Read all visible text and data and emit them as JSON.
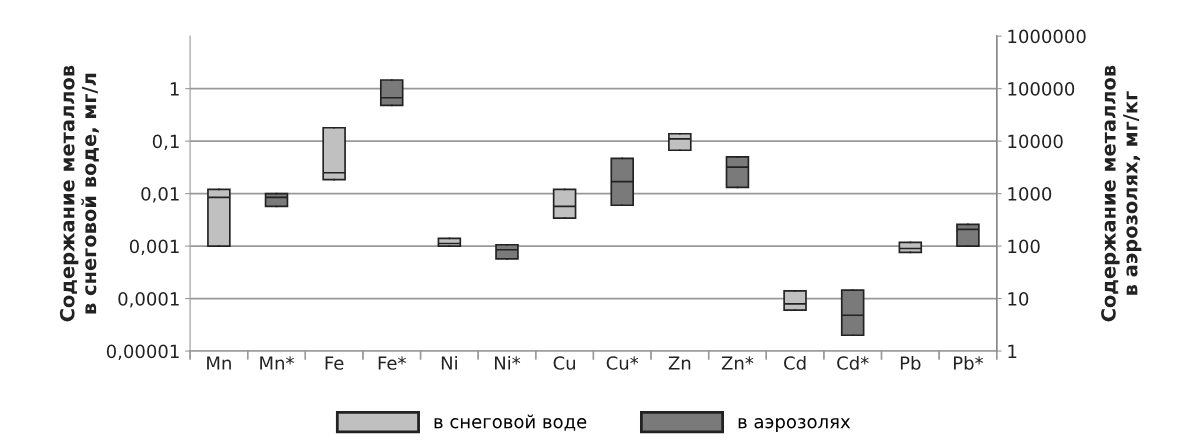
{
  "chart_data": [
    {
      "type": "box",
      "ylabel": "Содержание металлов\nв снеговой воде, мг/л",
      "categories": [
        "Mn",
        null,
        "Fe",
        null,
        "Ni",
        null,
        "Cu",
        null,
        "Zn",
        null,
        "Cd",
        null,
        "Pb",
        null
      ],
      "log": "y",
      "ylim": [
        1e-05,
        10
      ],
      "yticks": [
        {
          "value": 1e-05,
          "label": "0,00001"
        },
        {
          "value": 0.0001,
          "label": "0,0001"
        },
        {
          "value": 0.001,
          "label": "0,001"
        },
        {
          "value": 0.01,
          "label": "0,01"
        },
        {
          "value": 0.1,
          "label": "0,1"
        },
        {
          "value": 1,
          "label": "1"
        }
      ],
      "grid": "y",
      "legend": "bottom",
      "series": [
        {
          "name": "в снеговой воде",
          "color": "#c0c0c0",
          "boxes": [
            {
              "low": 0.001,
              "q1": 0.001,
              "median": 0.0085,
              "q3": 0.012,
              "high": 0.012
            },
            null,
            {
              "low": 0.0185,
              "q1": 0.0185,
              "median": 0.025,
              "q3": 0.18,
              "high": 0.18
            },
            null,
            {
              "low": 0.001,
              "q1": 0.001,
              "median": 0.00112,
              "q3": 0.0014,
              "high": 0.0014
            },
            null,
            {
              "low": 0.0034,
              "q1": 0.0034,
              "median": 0.0057,
              "q3": 0.012,
              "high": 0.012
            },
            null,
            {
              "low": 0.067,
              "q1": 0.067,
              "median": 0.11,
              "q3": 0.138,
              "high": 0.138
            },
            null,
            {
              "low": 6e-05,
              "q1": 6e-05,
              "median": 7.9e-05,
              "q3": 0.00014,
              "high": 0.00014
            },
            null,
            {
              "low": 0.00076,
              "q1": 0.00076,
              "median": 0.0009,
              "q3": 0.00118,
              "high": 0.00118
            },
            null
          ]
        }
      ]
    },
    {
      "type": "box",
      "y2label": "Содержание металлов\nв аэрозолях, мг/кг",
      "categories": [
        null,
        "Mn*",
        null,
        "Fe*",
        null,
        "Ni*",
        null,
        "Cu*",
        null,
        "Zn*",
        null,
        "Cd*",
        null,
        "Pb*"
      ],
      "log": "y2",
      "y2lim": [
        1,
        1000000
      ],
      "y2ticks": [
        1,
        10,
        100,
        1000,
        10000,
        100000,
        1000000
      ],
      "legend": "bottom",
      "series": [
        {
          "name": "в аэрозолях",
          "color": "#7a7a7a",
          "axis": "y2",
          "boxes": [
            null,
            {
              "low": 570,
              "q1": 570,
              "median": 850,
              "q3": 1000,
              "high": 1000
            },
            null,
            {
              "low": 48000,
              "q1": 48000,
              "median": 67000,
              "q3": 146000,
              "high": 146000
            },
            null,
            {
              "low": 57,
              "q1": 57,
              "median": 85,
              "q3": 106,
              "high": 106
            },
            null,
            {
              "low": 600,
              "q1": 600,
              "median": 1690,
              "q3": 4700,
              "high": 4700
            },
            null,
            {
              "low": 1310,
              "q1": 1310,
              "median": 3200,
              "q3": 5000,
              "high": 5000
            },
            null,
            {
              "low": 2.0,
              "q1": 2.0,
              "median": 4.8,
              "q3": 14.5,
              "high": 14.5
            },
            null,
            {
              "low": 100,
              "q1": 100,
              "median": 208,
              "q3": 260,
              "high": 260
            }
          ]
        }
      ]
    }
  ]
}
